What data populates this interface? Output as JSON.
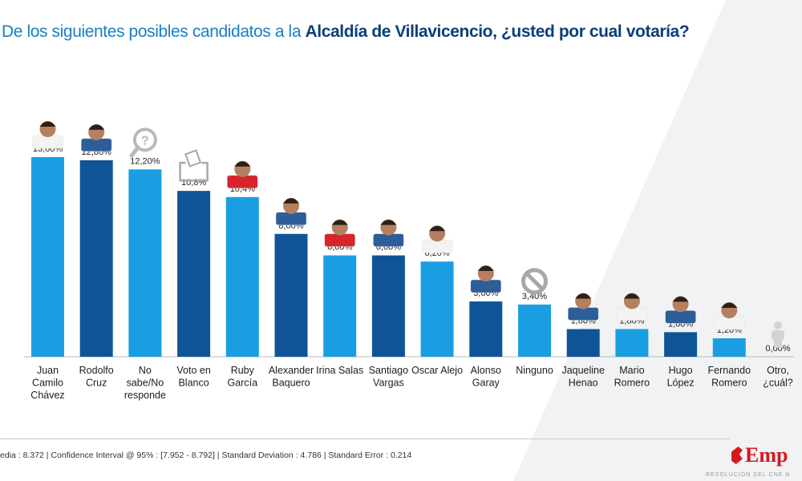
{
  "title": {
    "prefix": "De los siguientes posibles candidatos a la ",
    "highlight": "Alcaldía de Villavicencio, ¿usted por cual votaría?"
  },
  "colors": {
    "light_bar": "#1a9ee2",
    "dark_bar": "#0f5496",
    "title_light": "#1a7fc4",
    "title_dark": "#0b3f7a"
  },
  "chart_data": {
    "type": "bar",
    "categories": [
      "Juan Camilo Chávez",
      "Rodolfo Cruz",
      "No sabe/No responde",
      "Voto en Blanco",
      "Ruby García",
      "Alexander Baquero",
      "Irina Salas",
      "Santiago Vargas",
      "Oscar Alejo",
      "Alonso Garay",
      "Ninguno",
      "Jaqueline Henao",
      "Mario Romero",
      "Hugo López",
      "Fernando Romero",
      "Otro, ¿cuál?"
    ],
    "category_lines": [
      [
        "Juan",
        "Camilo",
        "Chávez"
      ],
      [
        "Rodolfo",
        "Cruz"
      ],
      [
        "No",
        "sabe/No",
        "responde"
      ],
      [
        "Voto en",
        "Blanco"
      ],
      [
        "Ruby",
        "García"
      ],
      [
        "Alexander",
        "Baquero"
      ],
      [
        "Irina Salas"
      ],
      [
        "Santiago",
        "Vargas"
      ],
      [
        "Oscar Alejo"
      ],
      [
        "Alonso",
        "Garay"
      ],
      [
        "Ninguno"
      ],
      [
        "Jaqueline",
        "Henao"
      ],
      [
        "Mario",
        "Romero"
      ],
      [
        "Hugo",
        "López"
      ],
      [
        "Fernando",
        "Romero"
      ],
      [
        "Otro,",
        "¿cuál?"
      ]
    ],
    "values": [
      13.0,
      12.8,
      12.2,
      10.8,
      10.4,
      8.0,
      6.6,
      6.6,
      6.2,
      3.6,
      3.4,
      1.8,
      1.8,
      1.6,
      1.2,
      0.0
    ],
    "data_labels": [
      "13,00%",
      "12,80%",
      "12,20%",
      "10,8%",
      "10,4%",
      "8,00%",
      "6,60%",
      "6,60%",
      "6,20%",
      "3,60%",
      "3,40%",
      "1,80%",
      "1,80%",
      "1,60%",
      "1,20%",
      "0,00%"
    ],
    "bar_tones": [
      "light",
      "dark",
      "light",
      "dark",
      "light",
      "dark",
      "light",
      "dark",
      "light",
      "dark",
      "light",
      "dark",
      "light",
      "dark",
      "light",
      "light"
    ],
    "icons": [
      "person-photo",
      "person-photo",
      "magnifier-question-icon",
      "ballot-box-icon",
      "person-photo",
      "person-photo",
      "person-photo",
      "person-photo",
      "person-photo",
      "person-photo",
      "prohibited-icon",
      "person-photo",
      "person-photo",
      "person-photo",
      "person-photo",
      "person-silhouette-icon"
    ],
    "ylim": [
      0,
      13.0
    ],
    "grid": false,
    "legend": "none"
  },
  "footer": {
    "stats": "edia : 8.372  |  Confidence Interval @ 95% : [7.952 - 8.792]  |  Standard Deviation : 4.786  |  Standard Error : 0.214"
  },
  "logo": {
    "text": "Emp",
    "subtitle": "RESOLUCIÓN DEL CNE N"
  }
}
